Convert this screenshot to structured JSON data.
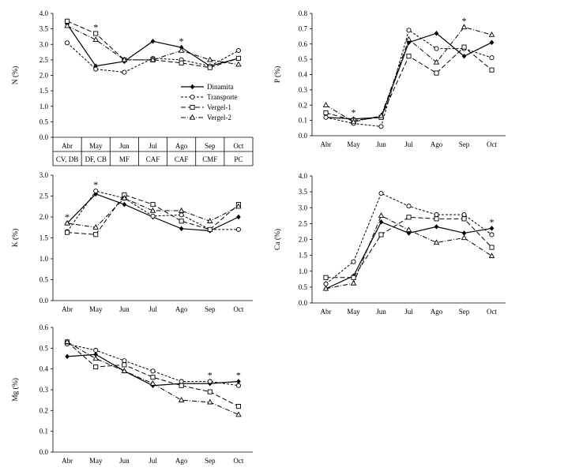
{
  "months": [
    "Abr",
    "May",
    "Jun",
    "Jul",
    "Ago",
    "Sep",
    "Oct"
  ],
  "stage_labels": [
    "CV, DB",
    "DF, CB",
    "MF",
    "CAF",
    "CAF",
    "CMF",
    "PC"
  ],
  "legend": [
    "Dinamita",
    "Transporte",
    "Vergel-1",
    "Vergel-2"
  ],
  "chart_data": [
    {
      "id": "N",
      "type": "line",
      "ylabel": "N (%)",
      "ylim": [
        0,
        4.0
      ],
      "yticks": [
        0,
        0.5,
        1.0,
        1.5,
        2.0,
        2.5,
        3.0,
        3.5,
        4.0
      ],
      "decimals": 1,
      "categories": [
        "Abr",
        "May",
        "Jun",
        "Jul",
        "Ago",
        "Sep",
        "Oct"
      ],
      "stage_labels": [
        "CV, DB",
        "DF, CB",
        "MF",
        "CAF",
        "CAF",
        "CMF",
        "PC"
      ],
      "significance": [
        "May",
        "Ago"
      ],
      "series": [
        {
          "name": "Dinamita",
          "values": [
            3.65,
            2.3,
            2.45,
            3.1,
            2.9,
            2.3,
            2.55
          ]
        },
        {
          "name": "Transporte",
          "values": [
            3.05,
            2.2,
            2.1,
            2.55,
            2.5,
            2.3,
            2.8
          ]
        },
        {
          "name": "Vergel-1",
          "values": [
            3.75,
            3.35,
            2.5,
            2.5,
            2.4,
            2.25,
            2.55
          ]
        },
        {
          "name": "Vergel-2",
          "values": [
            3.6,
            3.15,
            2.5,
            2.5,
            2.8,
            2.5,
            2.35
          ]
        }
      ]
    },
    {
      "id": "P",
      "type": "line",
      "ylabel": "P (%)",
      "ylim": [
        0,
        0.8
      ],
      "yticks": [
        0,
        0.1,
        0.2,
        0.3,
        0.4,
        0.5,
        0.6,
        0.7,
        0.8
      ],
      "decimals": 1,
      "categories": [
        "Abr",
        "May",
        "Jun",
        "Jul",
        "Ago",
        "Sep",
        "Oct"
      ],
      "significance": [
        "May",
        "Sep"
      ],
      "series": [
        {
          "name": "Dinamita",
          "values": [
            0.12,
            0.11,
            0.12,
            0.61,
            0.67,
            0.52,
            0.61
          ]
        },
        {
          "name": "Transporte",
          "values": [
            0.12,
            0.08,
            0.06,
            0.69,
            0.57,
            0.57,
            0.51
          ]
        },
        {
          "name": "Vergel-1",
          "values": [
            0.15,
            0.1,
            0.12,
            0.52,
            0.41,
            0.58,
            0.43
          ]
        },
        {
          "name": "Vergel-2",
          "values": [
            0.2,
            0.09,
            0.13,
            0.63,
            0.48,
            0.71,
            0.66
          ]
        }
      ]
    },
    {
      "id": "K",
      "type": "line",
      "ylabel": "K (%)",
      "ylim": [
        0,
        3.0
      ],
      "yticks": [
        0,
        0.5,
        1.0,
        1.5,
        2.0,
        2.5,
        3.0
      ],
      "decimals": 1,
      "categories": [
        "Abr",
        "May",
        "Jun",
        "Jul",
        "Ago",
        "Sep",
        "Oct"
      ],
      "significance": [
        "Abr",
        "May"
      ],
      "series": [
        {
          "name": "Dinamita",
          "values": [
            1.85,
            2.55,
            2.3,
            2.0,
            1.72,
            1.67,
            2.0
          ]
        },
        {
          "name": "Transporte",
          "values": [
            1.65,
            2.62,
            2.45,
            2.02,
            2.05,
            1.7,
            1.7
          ]
        },
        {
          "name": "Vergel-1",
          "values": [
            1.63,
            1.58,
            2.53,
            2.3,
            1.9,
            1.7,
            2.3
          ]
        },
        {
          "name": "Vergel-2",
          "values": [
            1.85,
            1.75,
            2.45,
            2.15,
            2.15,
            1.9,
            2.25
          ]
        }
      ]
    },
    {
      "id": "Ca",
      "type": "line",
      "ylabel": "Ca (%)",
      "ylim": [
        0,
        4.0
      ],
      "yticks": [
        0,
        0.5,
        1.0,
        1.5,
        2.0,
        2.5,
        3.0,
        3.5,
        4.0
      ],
      "decimals": 1,
      "categories": [
        "Abr",
        "May",
        "Jun",
        "Jul",
        "Ago",
        "Sep",
        "Oct"
      ],
      "significance": [
        "Oct"
      ],
      "series": [
        {
          "name": "Dinamita",
          "values": [
            0.45,
            0.85,
            2.55,
            2.2,
            2.4,
            2.2,
            2.35
          ]
        },
        {
          "name": "Transporte",
          "values": [
            0.6,
            1.3,
            3.45,
            3.05,
            2.78,
            2.78,
            2.15
          ]
        },
        {
          "name": "Vergel-1",
          "values": [
            0.8,
            0.8,
            2.15,
            2.7,
            2.65,
            2.65,
            1.75
          ]
        },
        {
          "name": "Vergel-2",
          "values": [
            0.45,
            0.62,
            2.75,
            2.3,
            1.9,
            2.05,
            1.48
          ]
        }
      ]
    },
    {
      "id": "Mg",
      "type": "line",
      "ylabel": "Mg (%)",
      "ylim": [
        0,
        0.6
      ],
      "yticks": [
        0,
        0.1,
        0.2,
        0.3,
        0.4,
        0.5,
        0.6
      ],
      "decimals": 1,
      "categories": [
        "Abr",
        "May",
        "Jun",
        "Jul",
        "Ago",
        "Sep",
        "Oct"
      ],
      "significance": [
        "Sep",
        "Oct"
      ],
      "series": [
        {
          "name": "Dinamita",
          "values": [
            0.46,
            0.47,
            0.39,
            0.32,
            0.33,
            0.33,
            0.34
          ]
        },
        {
          "name": "Transporte",
          "values": [
            0.52,
            0.49,
            0.44,
            0.39,
            0.34,
            0.34,
            0.32
          ]
        },
        {
          "name": "Vergel-1",
          "values": [
            0.53,
            0.41,
            0.42,
            0.36,
            0.32,
            0.29,
            0.22
          ]
        },
        {
          "name": "Vergel-2",
          "values": [
            0.53,
            0.45,
            0.39,
            0.33,
            0.25,
            0.24,
            0.18
          ]
        }
      ]
    }
  ]
}
